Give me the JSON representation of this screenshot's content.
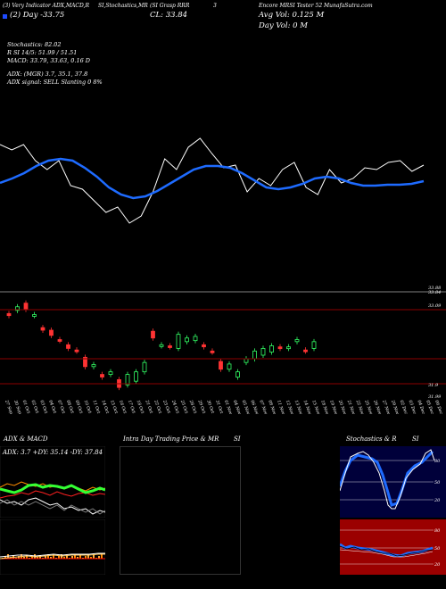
{
  "header": {
    "top_left": "(3) Very Indicator ADX,MACD,R",
    "top_mid": "SI,Stochastics,MR",
    "top_mid2": "(SI Grasp RRR",
    "top_right_num": "3",
    "top_right": "Encore MRSI Tester 52 MunafaSutra.com",
    "line2_left": "(2) Day  -33.75",
    "line2_mid": "CL:   33.84",
    "line2_right_a": "Avg Vol: 0.125 M",
    "line2_right_b": "Day Vol: 0   M"
  },
  "indicators": {
    "stochastics": "Stochastics: 82.02",
    "rsi": "R   SI 14/5: 51.99 / 51.51",
    "macd": "MACD: 33.79, 33.63, 0.16  D",
    "adx": "ADX:                          (MGR) 3.7,  35.1,  37.8",
    "adx_signal": "ADX  signal: SELL   Slanting 0 8%"
  },
  "price_chart": {
    "right_labels": [
      "33.88",
      "33.84",
      "33.09",
      "31.9",
      "31.99"
    ],
    "x_labels": [
      "27 Sep",
      "30 Sep",
      "01 Oct",
      "02 Oct",
      "03 Oct",
      "04 Oct",
      "07 Oct",
      "08 Oct",
      "09 Oct",
      "10 Oct",
      "11 Oct",
      "14 Oct",
      "15 Oct",
      "16 Oct",
      "17 Oct",
      "18 Oct",
      "21 Oct",
      "22 Oct",
      "23 Oct",
      "24 Oct",
      "25 Oct",
      "28 Oct",
      "29 Oct",
      "30 Oct",
      "31 Oct",
      "01 Nov",
      "04 Nov",
      "05 Nov",
      "06 Nov",
      "07 Nov",
      "08 Nov",
      "11 Nov",
      "12 Nov",
      "13 Nov",
      "14 Nov",
      "15 Nov",
      "18 Nov",
      "19 Nov",
      "20 Nov",
      "21 Nov",
      "22 Nov",
      "25 Nov",
      "26 Nov",
      "27 Nov",
      "29 Nov",
      "02 Dec",
      "03 Dec",
      "04 Dec",
      "05 Dec",
      "06 Dec"
    ]
  },
  "panels": {
    "adx_title": "ADX  & MACD",
    "adx_values": "ADX: 3.7  +DY: 35.14  -DY: 37.84",
    "intra_title": "Intra  Day Trading Price  & MR",
    "intra_title_b": "SI",
    "stoch_title": "Stochastics & R",
    "stoch_title_b": "SI",
    "stoch_labels": [
      "80",
      "50",
      "20"
    ],
    "rsi_labels": [
      "80",
      "50",
      "20"
    ]
  },
  "chart_data": {
    "type": "candlestick",
    "candles": [
      {
        "o": 33.22,
        "c": 33.18,
        "up": false
      },
      {
        "o": 33.28,
        "c": 33.35,
        "up": true
      },
      {
        "o": 33.42,
        "c": 33.3,
        "up": false
      },
      {
        "o": 33.18,
        "c": 33.2,
        "up": true
      },
      {
        "o": 32.95,
        "c": 32.9,
        "up": false
      },
      {
        "o": 32.9,
        "c": 32.8,
        "up": false
      },
      {
        "o": 32.72,
        "c": 32.7,
        "up": false
      },
      {
        "o": 32.62,
        "c": 32.55,
        "up": false
      },
      {
        "o": 32.52,
        "c": 32.5,
        "up": false
      },
      {
        "o": 32.38,
        "c": 32.2,
        "up": false
      },
      {
        "o": 32.24,
        "c": 32.2,
        "up": true
      },
      {
        "o": 32.05,
        "c": 32.0,
        "up": false
      },
      {
        "o": 32.05,
        "c": 32.1,
        "up": true
      },
      {
        "o": 31.95,
        "c": 31.8,
        "up": false
      },
      {
        "o": 31.85,
        "c": 32.05,
        "up": true
      },
      {
        "o": 31.92,
        "c": 32.1,
        "up": true
      },
      {
        "o": 32.1,
        "c": 32.28,
        "up": true
      },
      {
        "o": 32.75,
        "c": 32.88,
        "up": false
      },
      {
        "o": 32.6,
        "c": 32.62,
        "up": true
      },
      {
        "o": 32.58,
        "c": 32.6,
        "up": false
      },
      {
        "o": 32.55,
        "c": 32.82,
        "up": true
      },
      {
        "o": 32.68,
        "c": 32.75,
        "up": true
      },
      {
        "o": 32.7,
        "c": 32.78,
        "up": true
      },
      {
        "o": 32.58,
        "c": 32.62,
        "up": false
      },
      {
        "o": 32.48,
        "c": 32.5,
        "up": false
      },
      {
        "o": 32.15,
        "c": 32.3,
        "up": false
      },
      {
        "o": 32.15,
        "c": 32.25,
        "up": true
      },
      {
        "o": 32.0,
        "c": 32.1,
        "up": true
      },
      {
        "o": 32.28,
        "c": 32.35,
        "up": true
      },
      {
        "o": 32.35,
        "c": 32.5,
        "up": true
      },
      {
        "o": 32.42,
        "c": 32.55,
        "up": true
      },
      {
        "o": 32.48,
        "c": 32.6,
        "up": true
      },
      {
        "o": 32.55,
        "c": 32.58,
        "up": false
      },
      {
        "o": 32.55,
        "c": 32.58,
        "up": true
      },
      {
        "o": 32.68,
        "c": 32.72,
        "up": true
      },
      {
        "o": 32.5,
        "c": 32.52,
        "up": false
      },
      {
        "o": 32.55,
        "c": 32.68,
        "up": true
      }
    ],
    "ema": [
      33.05,
      33.1,
      33.16,
      33.24,
      33.3,
      33.32,
      33.3,
      33.22,
      33.12,
      33.0,
      32.92,
      32.88,
      32.9,
      32.96,
      33.04,
      33.12,
      33.2,
      33.24,
      33.24,
      33.22,
      33.16,
      33.08,
      33.0,
      32.98,
      33.0,
      33.04,
      33.1,
      33.12,
      33.1,
      33.05,
      33.02,
      33.02,
      33.03,
      33.03,
      33.04,
      33.07
    ],
    "close_line": [
      33.48,
      33.42,
      33.48,
      33.3,
      33.2,
      33.3,
      33.02,
      32.98,
      32.85,
      32.72,
      32.78,
      32.6,
      32.68,
      32.95,
      33.32,
      33.2,
      33.45,
      33.55,
      33.38,
      33.22,
      33.25,
      32.95,
      33.1,
      33.02,
      33.2,
      33.28,
      33.0,
      32.92,
      33.2,
      33.05,
      33.1,
      33.22,
      33.2,
      33.28,
      33.3,
      33.18,
      33.25
    ]
  }
}
